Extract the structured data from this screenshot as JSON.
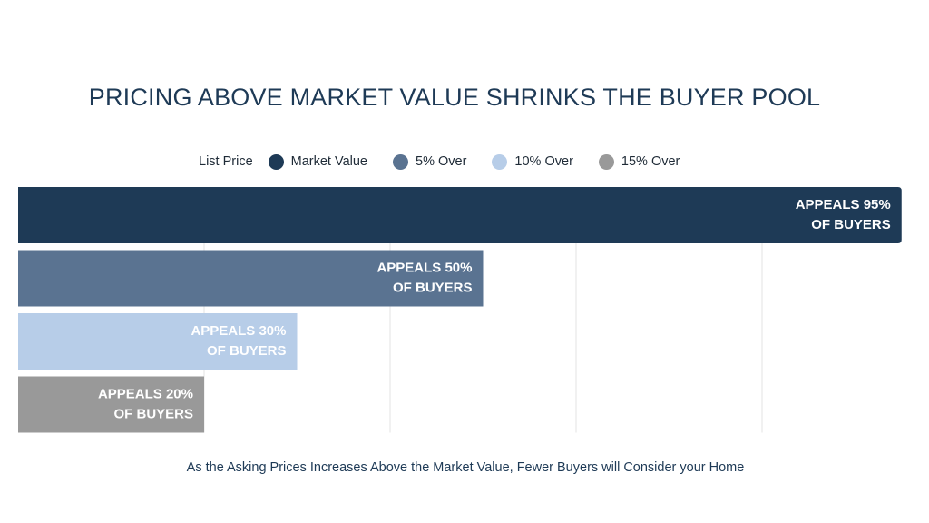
{
  "chart_data": {
    "type": "bar",
    "orientation": "horizontal",
    "title": "PRICING ABOVE MARKET VALUE SHRINKS THE BUYER POOL",
    "subtitle": "As the Asking Prices Increases Above the Market Value, Fewer Buyers will Consider your Home",
    "legend_title": "List Price",
    "legend_placement": "top",
    "categories": [
      "Market Value",
      "5% Over",
      "10% Over",
      "15% Over"
    ],
    "values": [
      95,
      50,
      30,
      20
    ],
    "colors": [
      "#1e3a56",
      "#5a7391",
      "#b7cde8",
      "#999999"
    ],
    "data_labels": [
      [
        "APPEALS 95%",
        "OF BUYERS"
      ],
      [
        "APPEALS 50%",
        "OF BUYERS"
      ],
      [
        "APPEALS 30%",
        "OF BUYERS"
      ],
      [
        "APPEALS 20%",
        "OF BUYERS"
      ]
    ],
    "xlim": [
      0,
      100
    ],
    "grid": true,
    "gridlines": [
      20,
      40,
      60,
      80
    ],
    "xlabel": "",
    "ylabel": ""
  }
}
